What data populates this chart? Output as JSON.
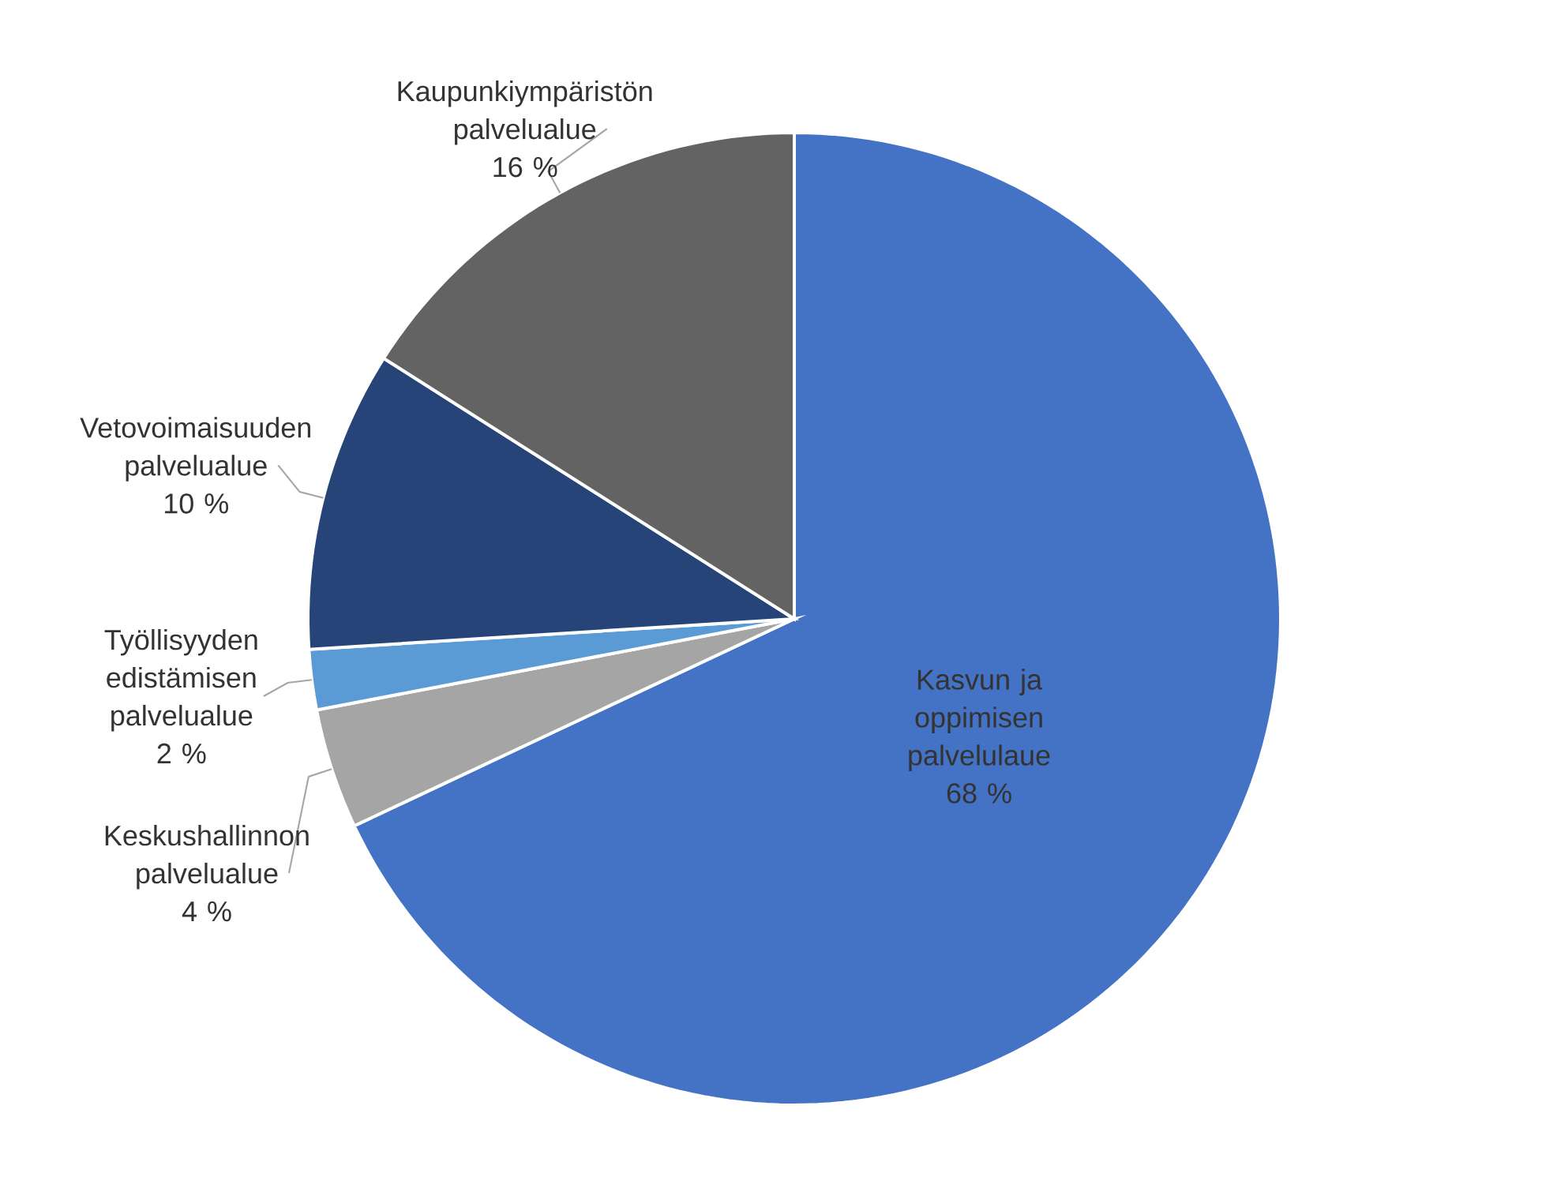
{
  "chart_data": {
    "type": "pie",
    "categories": [
      "Kasvun ja oppimisen palvelulaue",
      "Keskushallinnon palvelualue",
      "Työllisyyden edistämisen palvelualue",
      "Vetovoimaisuuden palvelualue",
      "Kaupunkiympäristön palvelualue"
    ],
    "values": [
      68,
      4,
      2,
      10,
      16
    ],
    "value_labels": [
      "68 %",
      "4 %",
      "2 %",
      "10 %",
      "16 %"
    ],
    "colors": [
      "#4472c4",
      "#a5a5a5",
      "#5b9bd5",
      "#264478",
      "#636363"
    ],
    "legend": false
  }
}
